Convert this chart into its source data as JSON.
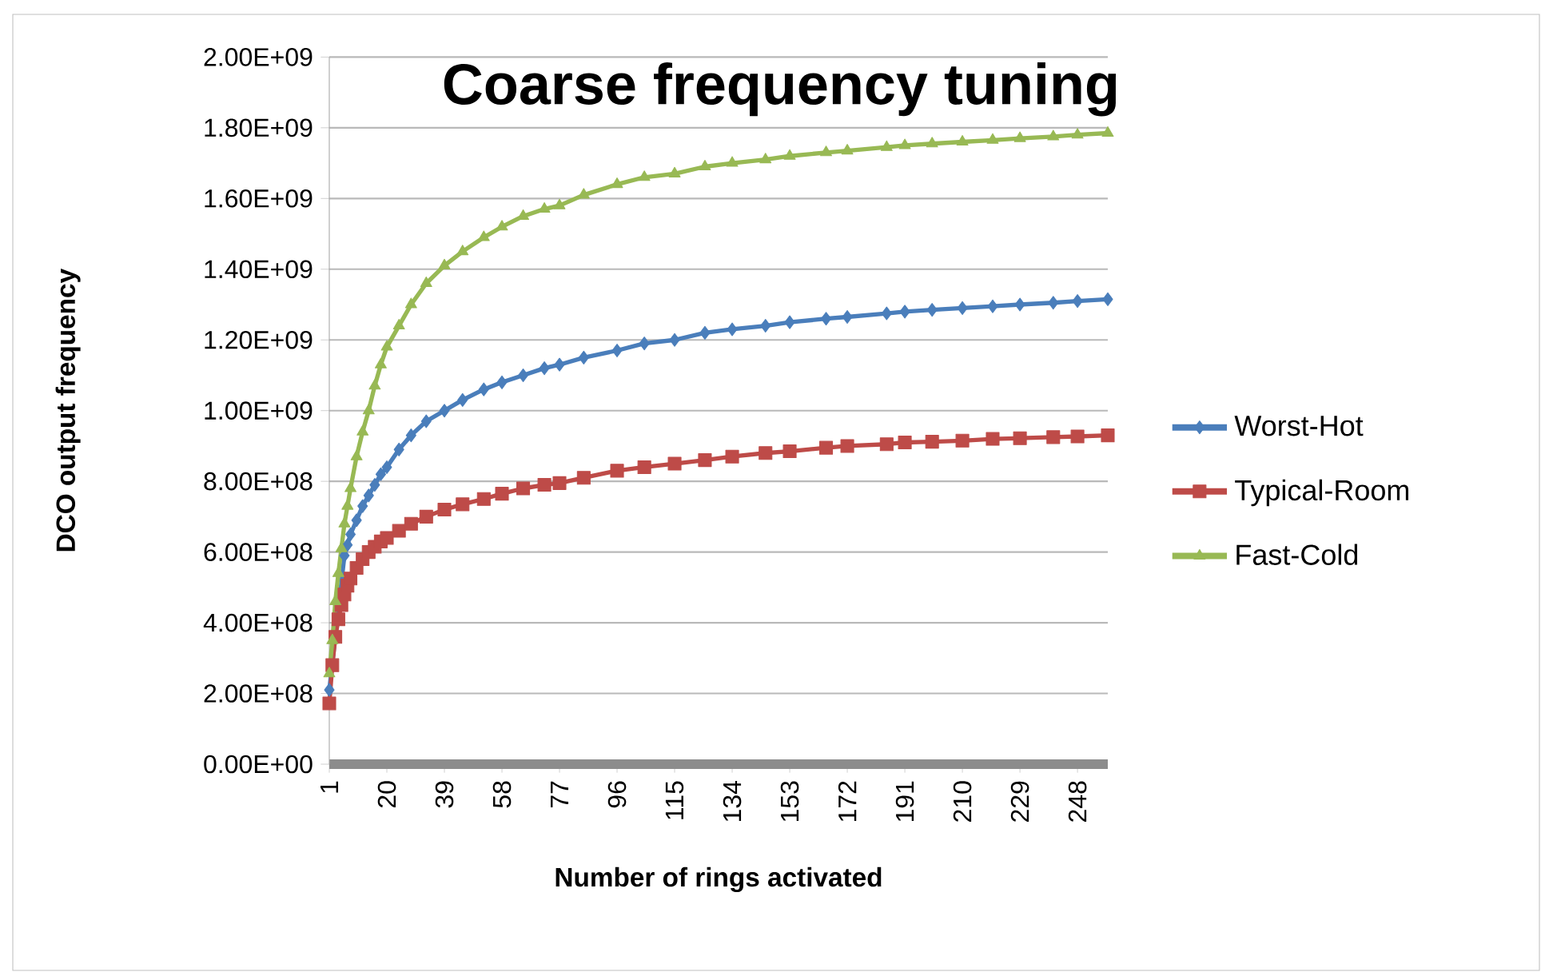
{
  "chart_data": {
    "type": "line",
    "title": "Coarse frequency tuning",
    "xlabel": "Number of rings activated",
    "ylabel": "DCO output frequency",
    "x": [
      1,
      2,
      3,
      4,
      5,
      6,
      7,
      8,
      10,
      12,
      14,
      16,
      18,
      20,
      24,
      28,
      33,
      39,
      45,
      52,
      58,
      65,
      72,
      77,
      85,
      96,
      105,
      115,
      125,
      134,
      145,
      153,
      165,
      172,
      185,
      191,
      200,
      210,
      220,
      229,
      240,
      248,
      258
    ],
    "xlim": [
      1,
      258
    ],
    "xticks": [
      1,
      20,
      39,
      58,
      77,
      96,
      115,
      134,
      153,
      172,
      191,
      210,
      229,
      248
    ],
    "ylim": [
      0,
      2000000000
    ],
    "yticks": [
      {
        "value": 0,
        "label": "0.00E+00"
      },
      {
        "value": 200000000,
        "label": "2.00E+08"
      },
      {
        "value": 400000000,
        "label": "4.00E+08"
      },
      {
        "value": 600000000,
        "label": "6.00E+08"
      },
      {
        "value": 800000000,
        "label": "8.00E+08"
      },
      {
        "value": 1000000000,
        "label": "1.00E+09"
      },
      {
        "value": 1200000000,
        "label": "1.20E+09"
      },
      {
        "value": 1400000000,
        "label": "1.40E+09"
      },
      {
        "value": 1600000000,
        "label": "1.60E+09"
      },
      {
        "value": 1800000000,
        "label": "1.80E+09"
      },
      {
        "value": 2000000000,
        "label": "2.00E+09"
      }
    ],
    "grid": "y",
    "legend": "right",
    "series": [
      {
        "name": "Worst-Hot",
        "color": "#4a7ebb",
        "marker": "diamond",
        "values": [
          210000000,
          null,
          null,
          null,
          null,
          590000000,
          620000000,
          650000000,
          690000000,
          730000000,
          760000000,
          790000000,
          820000000,
          840000000,
          890000000,
          930000000,
          970000000,
          1000000000,
          1030000000,
          1060000000,
          1080000000,
          1100000000,
          1120000000,
          1130000000,
          1150000000,
          1170000000,
          1190000000,
          1200000000,
          1220000000,
          1230000000,
          1240000000,
          1250000000,
          1260000000,
          1265000000,
          1275000000,
          1280000000,
          1285000000,
          1290000000,
          1295000000,
          1300000000,
          1305000000,
          1310000000,
          1315000000
        ]
      },
      {
        "name": "Typical-Room",
        "color": "#be4b48",
        "marker": "square",
        "values": [
          172000000,
          280000000,
          360000000,
          410000000,
          450000000,
          480000000,
          505000000,
          525000000,
          555000000,
          580000000,
          600000000,
          615000000,
          630000000,
          640000000,
          660000000,
          680000000,
          700000000,
          720000000,
          735000000,
          750000000,
          765000000,
          780000000,
          790000000,
          795000000,
          810000000,
          830000000,
          840000000,
          850000000,
          860000000,
          870000000,
          880000000,
          885000000,
          895000000,
          900000000,
          905000000,
          910000000,
          912000000,
          915000000,
          920000000,
          922000000,
          925000000,
          927000000,
          930000000
        ]
      },
      {
        "name": "Fast-Cold",
        "color": "#98b954",
        "marker": "triangle",
        "values": [
          256000000,
          350000000,
          460000000,
          540000000,
          610000000,
          680000000,
          730000000,
          780000000,
          870000000,
          940000000,
          1000000000,
          1070000000,
          1130000000,
          1180000000,
          1240000000,
          1300000000,
          1360000000,
          1410000000,
          1450000000,
          1490000000,
          1520000000,
          1550000000,
          1570000000,
          1580000000,
          1610000000,
          1640000000,
          1660000000,
          1670000000,
          1690000000,
          1700000000,
          1710000000,
          1720000000,
          1730000000,
          1735000000,
          1745000000,
          1750000000,
          1755000000,
          1760000000,
          1765000000,
          1770000000,
          1775000000,
          1780000000,
          1785000000
        ]
      }
    ]
  }
}
